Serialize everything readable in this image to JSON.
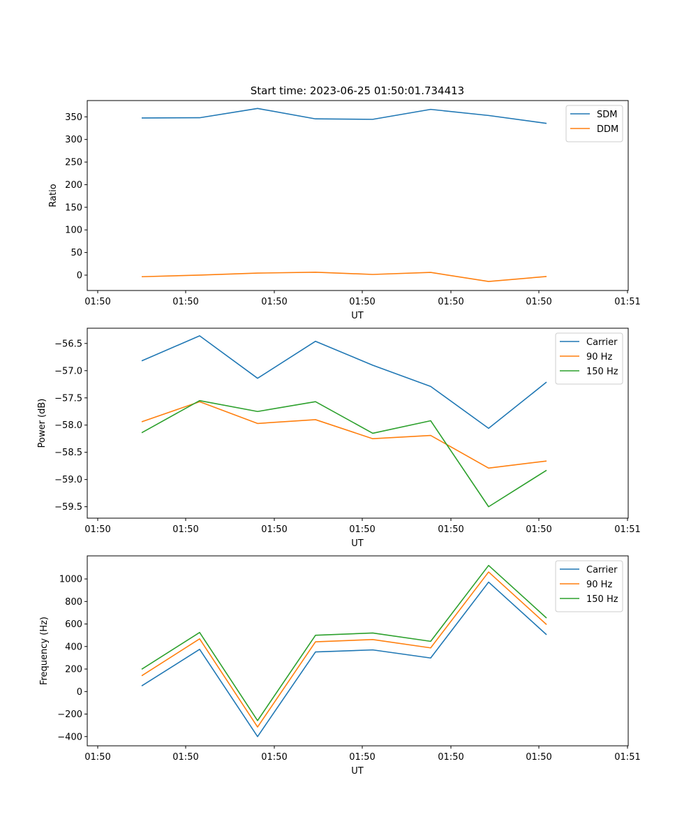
{
  "chart_data": [
    {
      "type": "line",
      "title": "Start time: 2023-06-25 01:50:01.734413",
      "xlabel": "UT",
      "ylabel": "Ratio",
      "ylim": [
        -34,
        386
      ],
      "yticks": [
        0,
        50,
        100,
        150,
        200,
        250,
        300,
        350
      ],
      "xtick_labels": [
        "01:50",
        "01:50",
        "01:50",
        "01:50",
        "01:50",
        "01:50",
        "01:50",
        "01:51"
      ],
      "legend_position": "top-right",
      "grid": false,
      "series": [
        {
          "name": "SDM",
          "color": "#1f77b4",
          "values": [
            347.5,
            348,
            368.5,
            345.5,
            344.5,
            366.5,
            353,
            335.5
          ]
        },
        {
          "name": "DDM",
          "color": "#ff7f0e",
          "values": [
            -3.5,
            0,
            4.5,
            6.5,
            1.5,
            6,
            -14,
            -3
          ]
        }
      ]
    },
    {
      "type": "line",
      "title": "",
      "xlabel": "UT",
      "ylabel": "Power (dB)",
      "ylim": [
        -59.71,
        -56.22
      ],
      "yticks": [
        -59.5,
        -59.0,
        -58.5,
        -58.0,
        -57.5,
        -57.0,
        -56.5
      ],
      "ytick_labels": [
        "−59.5",
        "−59.0",
        "−58.5",
        "−58.0",
        "−57.5",
        "−57.0",
        "−56.5"
      ],
      "xtick_labels": [
        "01:50",
        "01:50",
        "01:50",
        "01:50",
        "01:50",
        "01:50",
        "01:50",
        "01:51"
      ],
      "legend_position": "top-right",
      "grid": false,
      "series": [
        {
          "name": "Carrier",
          "color": "#1f77b4",
          "values": [
            -56.82,
            -56.36,
            -57.14,
            -56.46,
            -56.9,
            -57.29,
            -58.06,
            -57.21
          ]
        },
        {
          "name": "90 Hz",
          "color": "#ff7f0e",
          "values": [
            -57.94,
            -57.57,
            -57.97,
            -57.9,
            -58.25,
            -58.19,
            -58.79,
            -58.66
          ]
        },
        {
          "name": "150 Hz",
          "color": "#2ca02c",
          "values": [
            -58.14,
            -57.55,
            -57.75,
            -57.57,
            -58.15,
            -57.92,
            -59.5,
            -58.83
          ]
        }
      ]
    },
    {
      "type": "line",
      "title": "",
      "xlabel": "UT",
      "ylabel": "Frequency (Hz)",
      "ylim": [
        -482,
        1205
      ],
      "yticks": [
        -400,
        -200,
        0,
        200,
        400,
        600,
        800,
        1000
      ],
      "ytick_labels": [
        "−400",
        "−200",
        "0",
        "200",
        "400",
        "600",
        "800",
        "1000"
      ],
      "xtick_labels": [
        "01:50",
        "01:50",
        "01:50",
        "01:50",
        "01:50",
        "01:50",
        "01:50",
        "01:51"
      ],
      "legend_position": "top-right",
      "grid": false,
      "series": [
        {
          "name": "Carrier",
          "color": "#1f77b4",
          "values": [
            50,
            375,
            -400,
            352,
            370,
            298,
            972,
            505
          ]
        },
        {
          "name": "90 Hz",
          "color": "#ff7f0e",
          "values": [
            140,
            468,
            -315,
            442,
            462,
            388,
            1062,
            595
          ]
        },
        {
          "name": "150 Hz",
          "color": "#2ca02c",
          "values": [
            198,
            525,
            -258,
            500,
            520,
            446,
            1120,
            653
          ]
        }
      ]
    }
  ]
}
